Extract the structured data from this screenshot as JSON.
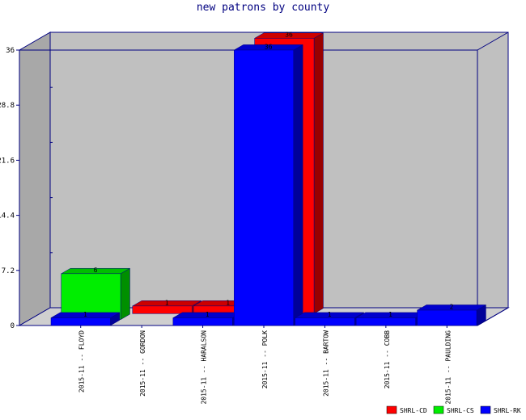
{
  "chart_data": {
    "type": "bar",
    "title": "new patrons by county",
    "categories": [
      "2015-11 -- FLOYD",
      "2015-11 -- GORDON",
      "2015-11 -- HARALSON",
      "2015-11 -- POLK",
      "2015-11 -- BARTOW",
      "2015-11 -- COBB",
      "2015-11 -- PAULDING"
    ],
    "series": [
      {
        "name": "SHRL-CD",
        "color": "#ff0000",
        "values": [
          0,
          1,
          1,
          36,
          0,
          0,
          0
        ]
      },
      {
        "name": "SHRL-CS",
        "color": "#00ee00",
        "values": [
          6,
          0,
          0,
          0,
          0,
          0,
          0
        ]
      },
      {
        "name": "SHRL-RK",
        "color": "#0000ff",
        "values": [
          1,
          0,
          1,
          36,
          1,
          1,
          2
        ]
      }
    ],
    "ylim": [
      0,
      36
    ],
    "yticks": [
      "0",
      "7.2",
      "14.4",
      "21.6",
      "28.8",
      "36"
    ],
    "grid": false,
    "legend": "bottom-right",
    "colors": {
      "frame": "#000080",
      "plot_back": "#c0c0c0",
      "side_wall": "#a8a8a8",
      "floor": "#cfcfcf"
    }
  }
}
